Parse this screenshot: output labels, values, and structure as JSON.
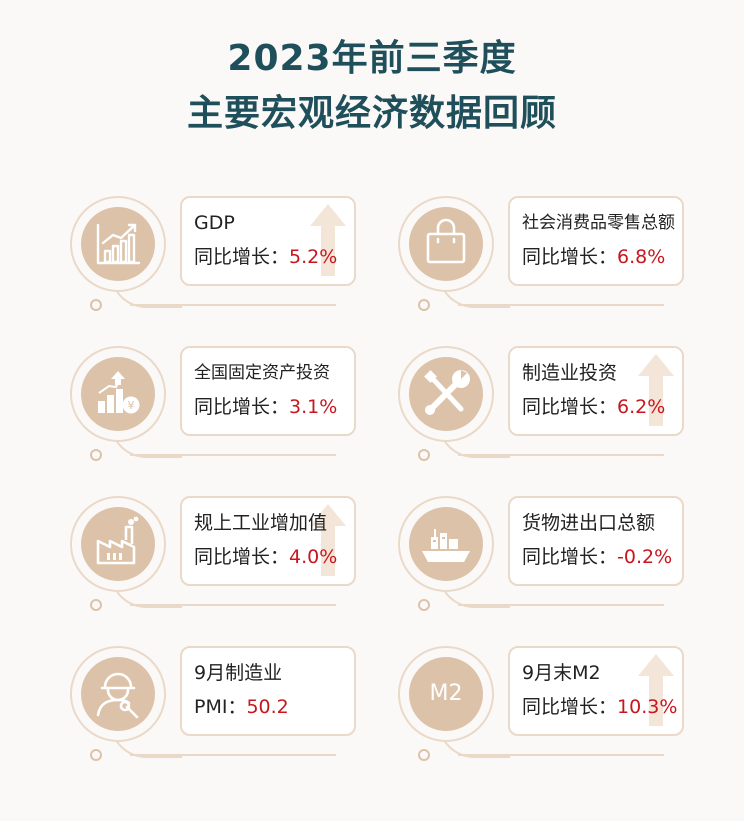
{
  "title_line1": "2023年前三季度",
  "title_line2": "主要宏观经济数据回顾",
  "cards": [
    {
      "label": "GDP",
      "prefix": "同比增长：",
      "value": "5.2%",
      "icon": "bar-chart-rising-icon"
    },
    {
      "label": "社会消费品零售总额",
      "prefix": "同比增长：",
      "value": "6.8%",
      "icon": "shopping-bag-icon"
    },
    {
      "label": "全国固定资产投资",
      "prefix": "同比增长：",
      "value": "3.1%",
      "icon": "investment-chart-yuan-icon"
    },
    {
      "label": "制造业投资",
      "prefix": "同比增长：",
      "value": "6.2%",
      "icon": "wrench-screwdriver-icon"
    },
    {
      "label": "规上工业增加值",
      "prefix": "同比增长：",
      "value": "4.0%",
      "icon": "factory-icon"
    },
    {
      "label": "货物进出口总额",
      "prefix": "同比增长：",
      "value": "-0.2%",
      "icon": "cargo-ship-icon"
    },
    {
      "label": "9月制造业",
      "prefix": "PMI：",
      "value": "50.2",
      "icon": "worker-wrench-icon"
    },
    {
      "label": "9月末M2",
      "prefix": "同比增长：",
      "value": "10.3%",
      "icon": "m2-badge-icon",
      "badge_text": "M2"
    }
  ]
}
